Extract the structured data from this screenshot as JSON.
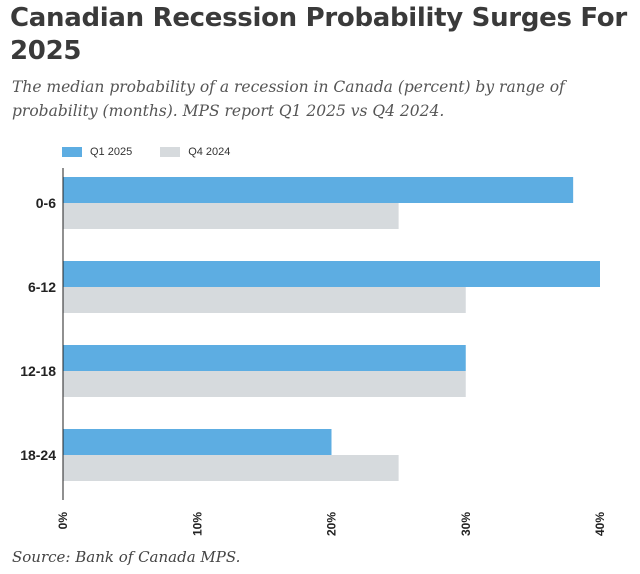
{
  "header": {
    "title": "Canadian Recession Probability Surges For 2025",
    "subtitle": "The median probability of a recession in Canada (percent) by range of probability (months). MPS report Q1 2025 vs Q4 2024."
  },
  "footer": {
    "source": "Source: Bank of Canada MPS."
  },
  "legend": {
    "items": [
      {
        "label": "Q1 2025",
        "color": "#5dade2"
      },
      {
        "label": "Q4 2024",
        "color": "#d6dadd"
      }
    ]
  },
  "chart_data": {
    "type": "bar",
    "orientation": "horizontal",
    "categories": [
      "0-6",
      "6-12",
      "12-18",
      "18-24"
    ],
    "series": [
      {
        "name": "Q1 2025",
        "values": [
          38,
          40,
          30,
          20
        ],
        "color": "#5dade2"
      },
      {
        "name": "Q4 2024",
        "values": [
          25,
          30,
          30,
          25
        ],
        "color": "#d6dadd"
      }
    ],
    "xlim": [
      0,
      40
    ],
    "xticks": [
      "0%",
      "10%",
      "20%",
      "30%",
      "40%"
    ],
    "xtick_values": [
      0,
      10,
      20,
      30,
      40
    ],
    "legend_position": "top-left",
    "grid": false
  }
}
